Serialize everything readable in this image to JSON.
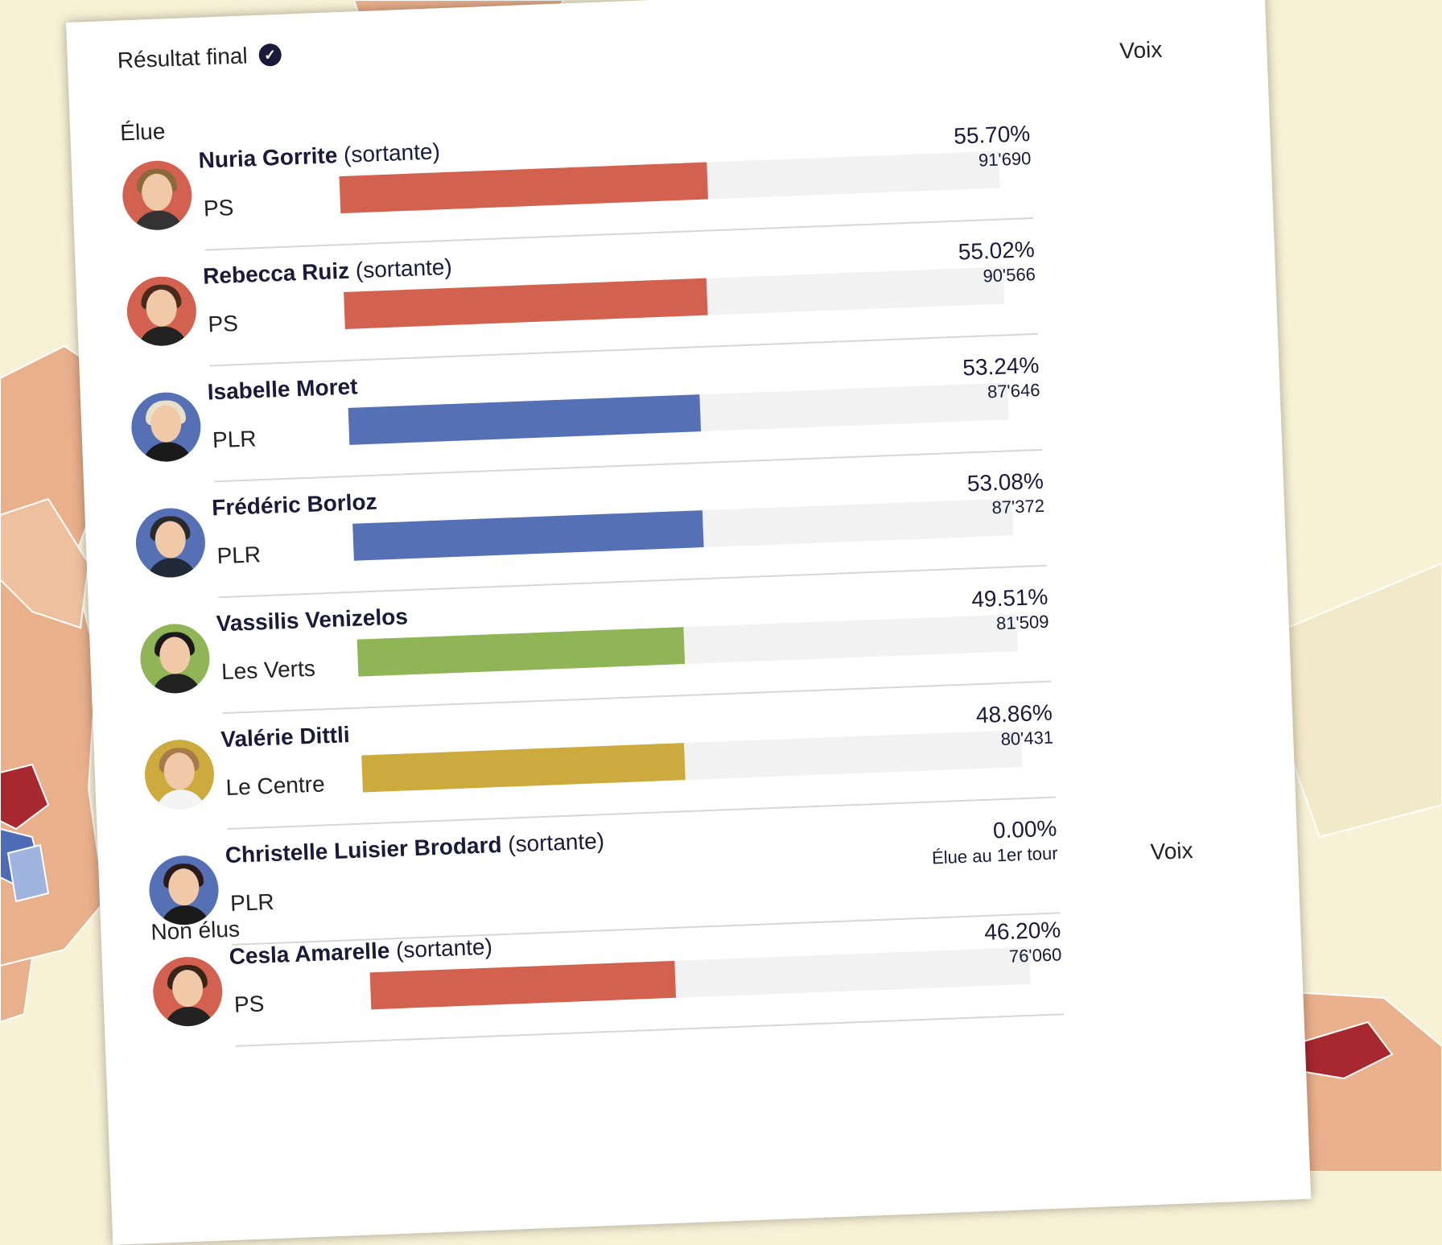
{
  "header": {
    "status_label": "Résultat final",
    "votes_column_label": "Voix"
  },
  "sections": [
    {
      "label": "Élue",
      "candidates": [
        {
          "name": "Nuria Gorrite",
          "tag": "(sortante)",
          "party": "PS",
          "percent": "55.70%",
          "votes": "91'690",
          "share": 0.557,
          "color": "#d2624f",
          "avatar_bg": "#d2624f",
          "hair": "#8a6a3a",
          "shirt": "#333333"
        },
        {
          "name": "Rebecca Ruiz",
          "tag": "(sortante)",
          "party": "PS",
          "percent": "55.02%",
          "votes": "90'566",
          "share": 0.5502,
          "color": "#d2624f",
          "avatar_bg": "#d2624f",
          "hair": "#4a2a1a",
          "shirt": "#222222"
        },
        {
          "name": "Isabelle Moret",
          "tag": "",
          "party": "PLR",
          "percent": "53.24%",
          "votes": "87'646",
          "share": 0.5324,
          "color": "#5570b5",
          "avatar_bg": "#5570b5",
          "hair": "#e8e0c8",
          "shirt": "#1a1a1a"
        },
        {
          "name": "Frédéric Borloz",
          "tag": "",
          "party": "PLR",
          "percent": "53.08%",
          "votes": "87'372",
          "share": 0.5308,
          "color": "#5570b5",
          "avatar_bg": "#5570b5",
          "hair": "#2a2a2a",
          "shirt": "#222a3a"
        },
        {
          "name": "Vassilis Venizelos",
          "tag": "",
          "party": "Les Verts",
          "percent": "49.51%",
          "votes": "81'509",
          "share": 0.4951,
          "color": "#8fb557",
          "avatar_bg": "#8fb557",
          "hair": "#1a1a1a",
          "shirt": "#222222"
        },
        {
          "name": "Valérie Dittli",
          "tag": "",
          "party": "Le Centre",
          "percent": "48.86%",
          "votes": "80'431",
          "share": 0.4886,
          "color": "#cdaa3e",
          "avatar_bg": "#cdaa3e",
          "hair": "#a87a4a",
          "shirt": "#f4f4f4"
        },
        {
          "name": "Christelle Luisier Brodard",
          "tag": "(sortante)",
          "party": "PLR",
          "percent": "0.00%",
          "votes": "Élue au 1er tour",
          "share": 0,
          "color": "#5570b5",
          "avatar_bg": "#5570b5",
          "hair": "#2a1a1a",
          "shirt": "#1a1a1a"
        }
      ]
    },
    {
      "label": "Non élus",
      "candidates": [
        {
          "name": "Cesla Amarelle",
          "tag": "(sortante)",
          "party": "PS",
          "percent": "46.20%",
          "votes": "76'060",
          "share": 0.462,
          "color": "#d2624f",
          "avatar_bg": "#d2624f",
          "hair": "#3a2418",
          "shirt": "#222222"
        }
      ]
    }
  ]
}
